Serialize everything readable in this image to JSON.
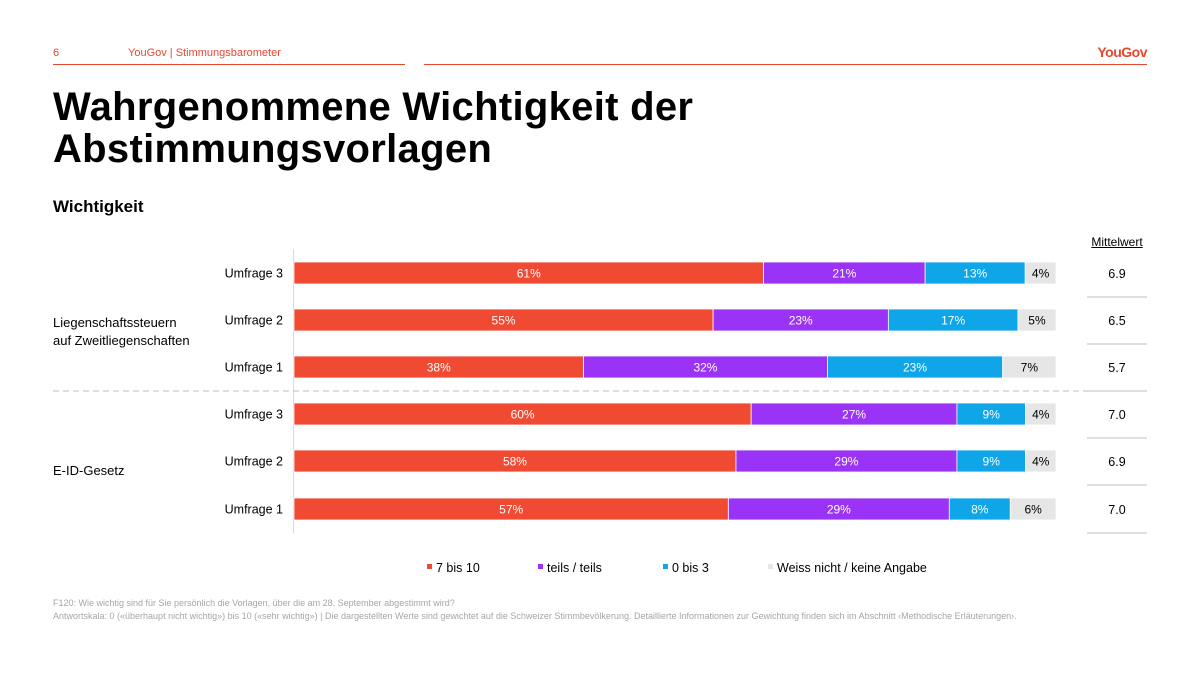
{
  "header": {
    "page_number": "6",
    "brand_text": "YouGov | Stimmungsbarometer",
    "logo": "YouGov"
  },
  "title": "Wahrgenommene Wichtigkeit der Abstimmungsvorlagen",
  "subtitle": "Wichtigkeit",
  "mean_header": "Mittelwert",
  "colors": {
    "accent": "#e8472e",
    "series": [
      "#f04a33",
      "#9a33f5",
      "#0ea5e9",
      "#e6e6e6"
    ]
  },
  "chart_data": {
    "type": "bar",
    "orientation": "horizontal",
    "stacked": true,
    "groups": [
      {
        "label": "Liegenschaftssteuern auf Zweitliegenschaften",
        "rows": [
          0,
          1,
          2
        ]
      },
      {
        "label": "E-ID-Gesetz",
        "rows": [
          3,
          4,
          5
        ]
      }
    ],
    "categories": [
      "Umfrage 3",
      "Umfrage 2",
      "Umfrage 1",
      "Umfrage 3",
      "Umfrage 2",
      "Umfrage 1"
    ],
    "series": [
      {
        "name": "7 bis 10",
        "values": [
          61,
          55,
          38,
          60,
          58,
          57
        ]
      },
      {
        "name": "teils / teils",
        "values": [
          21,
          23,
          32,
          27,
          29,
          29
        ]
      },
      {
        "name": "0 bis 3",
        "values": [
          13,
          17,
          23,
          9,
          9,
          8
        ]
      },
      {
        "name": "Weiss nicht / keine Angabe",
        "values": [
          4,
          5,
          7,
          4,
          4,
          6
        ]
      }
    ],
    "means": [
      "6.9",
      "6.5",
      "5.7",
      "7.0",
      "6.9",
      "7.0"
    ],
    "value_suffix": "%",
    "xlim": [
      0,
      100
    ],
    "legend_position": "bottom"
  },
  "footnotes": [
    "F120: Wie wichtig sind für Sie persönlich die Vorlagen, über die am 28. September abgestimmt wird?",
    "Antwortskala: 0 («überhaupt nicht wichtig») bis 10 («sehr wichtig») | Die dargestellten Werte sind gewichtet auf die Schweizer Stimmbevölkerung. Detaillierte Informationen zur Gewichtung finden sich im Abschnitt ‹Methodische Erläuterungen›."
  ]
}
